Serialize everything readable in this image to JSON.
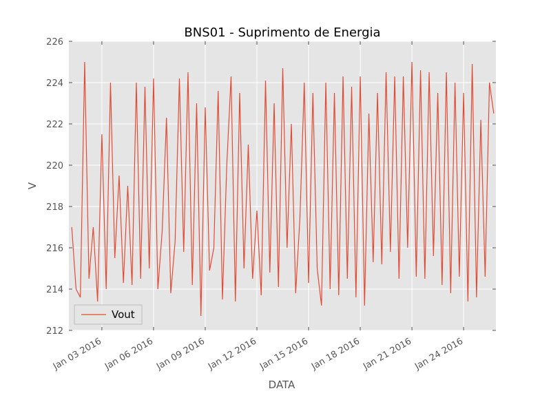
{
  "chart_data": {
    "type": "line",
    "title": "BNS01 - Suprimento de Energia",
    "x_label": "DATA",
    "y_label": "V",
    "x": [
      "2016-01-01T06:00",
      "2016-01-01T12:00",
      "2016-01-01T18:00",
      "2016-01-02T00:00",
      "2016-01-02T06:00",
      "2016-01-02T12:00",
      "2016-01-02T18:00",
      "2016-01-03T00:00",
      "2016-01-03T06:00",
      "2016-01-03T12:00",
      "2016-01-03T18:00",
      "2016-01-04T00:00",
      "2016-01-04T06:00",
      "2016-01-04T12:00",
      "2016-01-04T18:00",
      "2016-01-05T00:00",
      "2016-01-05T06:00",
      "2016-01-05T12:00",
      "2016-01-05T18:00",
      "2016-01-06T00:00",
      "2016-01-06T06:00",
      "2016-01-06T12:00",
      "2016-01-06T18:00",
      "2016-01-07T00:00",
      "2016-01-07T06:00",
      "2016-01-07T12:00",
      "2016-01-07T18:00",
      "2016-01-08T00:00",
      "2016-01-08T06:00",
      "2016-01-08T12:00",
      "2016-01-08T18:00",
      "2016-01-09T00:00",
      "2016-01-09T06:00",
      "2016-01-09T12:00",
      "2016-01-09T18:00",
      "2016-01-10T00:00",
      "2016-01-10T06:00",
      "2016-01-10T12:00",
      "2016-01-10T18:00",
      "2016-01-11T00:00",
      "2016-01-11T06:00",
      "2016-01-11T12:00",
      "2016-01-11T18:00",
      "2016-01-12T00:00",
      "2016-01-12T06:00",
      "2016-01-12T12:00",
      "2016-01-12T18:00",
      "2016-01-13T00:00",
      "2016-01-13T06:00",
      "2016-01-13T12:00",
      "2016-01-13T18:00",
      "2016-01-14T00:00",
      "2016-01-14T06:00",
      "2016-01-14T12:00",
      "2016-01-14T18:00",
      "2016-01-15T00:00",
      "2016-01-15T06:00",
      "2016-01-15T12:00",
      "2016-01-15T18:00",
      "2016-01-16T00:00",
      "2016-01-16T06:00",
      "2016-01-16T12:00",
      "2016-01-16T18:00",
      "2016-01-17T00:00",
      "2016-01-17T06:00",
      "2016-01-17T12:00",
      "2016-01-17T18:00",
      "2016-01-18T00:00",
      "2016-01-18T06:00",
      "2016-01-18T12:00",
      "2016-01-18T18:00",
      "2016-01-19T00:00",
      "2016-01-19T06:00",
      "2016-01-19T12:00",
      "2016-01-19T18:00",
      "2016-01-20T00:00",
      "2016-01-20T06:00",
      "2016-01-20T12:00",
      "2016-01-20T18:00",
      "2016-01-21T00:00",
      "2016-01-21T06:00",
      "2016-01-21T12:00",
      "2016-01-21T18:00",
      "2016-01-22T00:00",
      "2016-01-22T06:00",
      "2016-01-22T12:00",
      "2016-01-22T18:00",
      "2016-01-23T00:00",
      "2016-01-23T06:00",
      "2016-01-23T12:00",
      "2016-01-23T18:00",
      "2016-01-24T00:00",
      "2016-01-24T06:00",
      "2016-01-24T12:00",
      "2016-01-24T18:00",
      "2016-01-25T00:00",
      "2016-01-25T06:00",
      "2016-01-25T12:00",
      "2016-01-25T18:00"
    ],
    "series": [
      {
        "name": "Vout",
        "color": "#e24a33",
        "values": [
          217,
          214,
          213.6,
          225,
          214.5,
          217,
          213.4,
          221.5,
          214,
          224,
          215.5,
          219.5,
          214.3,
          219,
          214.2,
          224,
          214.5,
          223.8,
          215,
          224.2,
          214,
          216.8,
          222.3,
          213.8,
          216.3,
          224.2,
          215.8,
          224.5,
          214.2,
          223,
          212.7,
          222.8,
          214.9,
          216,
          223.6,
          213.5,
          220,
          224.3,
          213.4,
          223.5,
          215,
          221,
          214.5,
          217.8,
          213.7,
          224.1,
          214.8,
          223,
          214.1,
          224.7,
          216,
          222,
          213.8,
          217.5,
          224,
          214.3,
          223.5,
          215,
          213.2,
          224,
          214,
          223.5,
          213.7,
          224.3,
          214.5,
          223.8,
          213.6,
          224.3,
          213.2,
          222.5,
          215.3,
          223.5,
          215.2,
          224.5,
          215.8,
          224.3,
          214.5,
          224.3,
          216,
          225,
          214.6,
          224.6,
          214.5,
          224.5,
          215.6,
          223.5,
          214.2,
          224.5,
          213.8,
          224,
          214.6,
          223.5,
          213.4,
          224.9,
          213.6,
          222.2,
          214.6,
          224,
          222.5
        ]
      }
    ],
    "xlim": [
      "2016-01-01T02:00",
      "2016-01-25T21:00"
    ],
    "xticks": [
      {
        "value": "2016-01-03T00:00",
        "label": "Jan 03 2016"
      },
      {
        "value": "2016-01-06T00:00",
        "label": "Jan 06 2016"
      },
      {
        "value": "2016-01-09T00:00",
        "label": "Jan 09 2016"
      },
      {
        "value": "2016-01-12T00:00",
        "label": "Jan 12 2016"
      },
      {
        "value": "2016-01-15T00:00",
        "label": "Jan 15 2016"
      },
      {
        "value": "2016-01-18T00:00",
        "label": "Jan 18 2016"
      },
      {
        "value": "2016-01-21T00:00",
        "label": "Jan 21 2016"
      },
      {
        "value": "2016-01-24T00:00",
        "label": "Jan 24 2016"
      }
    ],
    "ylim": [
      212,
      226
    ],
    "yticks": [
      212,
      214,
      216,
      218,
      220,
      222,
      224,
      226
    ],
    "grid": true,
    "legend": "lower left"
  }
}
